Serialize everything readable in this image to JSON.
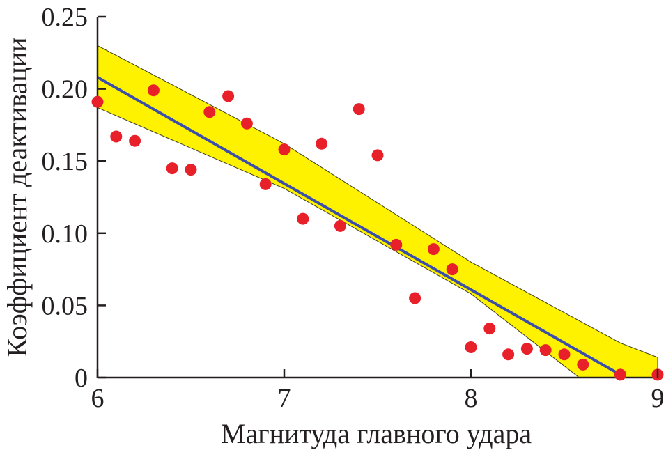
{
  "colors": {
    "points": "#e8202a",
    "band": "#fff200",
    "fit": "#3b4fa8",
    "axes": "#231f20"
  },
  "chart_data": {
    "type": "scatter",
    "title": "",
    "xlabel": "Магнитуда главного удара",
    "ylabel": "Коэффициент деактивации",
    "xlim": [
      6,
      9
    ],
    "ylim": [
      0,
      0.25
    ],
    "xticks": [
      6,
      7,
      8,
      9
    ],
    "xtick_labels": [
      "6",
      "7",
      "8",
      "9"
    ],
    "yticks": [
      0,
      0.05,
      0.1,
      0.15,
      0.2,
      0.25
    ],
    "ytick_labels": [
      "0",
      "0.05",
      "0.10",
      "0.15",
      "0.20",
      "0.25"
    ],
    "grid": false,
    "points": {
      "x": [
        6.0,
        6.1,
        6.2,
        6.3,
        6.4,
        6.5,
        6.6,
        6.7,
        6.8,
        6.9,
        7.0,
        7.1,
        7.2,
        7.3,
        7.4,
        7.5,
        7.6,
        7.7,
        7.8,
        7.9,
        8.0,
        8.1,
        8.2,
        8.3,
        8.4,
        8.5,
        8.6,
        8.8,
        9.0
      ],
      "y": [
        0.191,
        0.167,
        0.164,
        0.199,
        0.145,
        0.144,
        0.184,
        0.195,
        0.176,
        0.134,
        0.158,
        0.11,
        0.162,
        0.105,
        0.186,
        0.154,
        0.092,
        0.055,
        0.089,
        0.075,
        0.021,
        0.034,
        0.016,
        0.02,
        0.019,
        0.016,
        0.009,
        0.002,
        0.002
      ]
    },
    "fit_line": {
      "x": [
        6.0,
        8.8
      ],
      "y": [
        0.208,
        0.002
      ]
    },
    "confidence_band": {
      "x": [
        6.0,
        7.0,
        8.0,
        8.8,
        9.0
      ],
      "upper": [
        0.23,
        0.162,
        0.08,
        0.024,
        0.014
      ],
      "lower": [
        0.187,
        0.131,
        0.058,
        -0.022,
        -0.045
      ]
    }
  }
}
